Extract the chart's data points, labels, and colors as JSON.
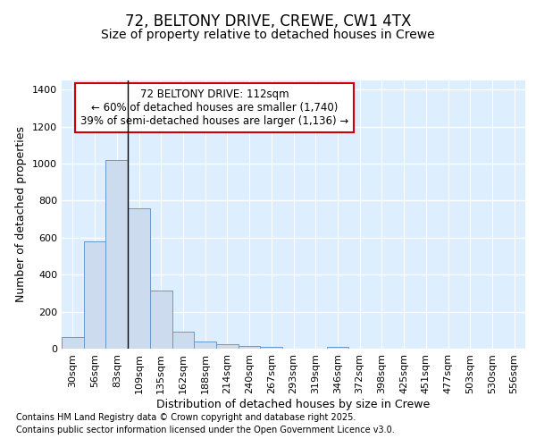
{
  "title1": "72, BELTONY DRIVE, CREWE, CW1 4TX",
  "title2": "Size of property relative to detached houses in Crewe",
  "xlabel": "Distribution of detached houses by size in Crewe",
  "ylabel": "Number of detached properties",
  "bar_labels": [
    "30sqm",
    "56sqm",
    "83sqm",
    "109sqm",
    "135sqm",
    "162sqm",
    "188sqm",
    "214sqm",
    "240sqm",
    "267sqm",
    "293sqm",
    "319sqm",
    "346sqm",
    "372sqm",
    "398sqm",
    "425sqm",
    "451sqm",
    "477sqm",
    "503sqm",
    "530sqm",
    "556sqm"
  ],
  "bar_values": [
    65,
    580,
    1020,
    760,
    315,
    90,
    38,
    25,
    15,
    10,
    0,
    0,
    10,
    0,
    0,
    0,
    0,
    0,
    0,
    0,
    0
  ],
  "bar_color": "#ccdcee",
  "bar_edge_color": "#6699cc",
  "ylim": [
    0,
    1450
  ],
  "yticks": [
    0,
    200,
    400,
    600,
    800,
    1000,
    1200,
    1400
  ],
  "vline_x": 3.0,
  "annotation_text": "72 BELTONY DRIVE: 112sqm\n← 60% of detached houses are smaller (1,740)\n39% of semi-detached houses are larger (1,136) →",
  "annotation_box_facecolor": "#ffffff",
  "annotation_box_edgecolor": "#cc0000",
  "footnote1": "Contains HM Land Registry data © Crown copyright and database right 2025.",
  "footnote2": "Contains public sector information licensed under the Open Government Licence v3.0.",
  "plot_bg_color": "#ddeeff",
  "fig_bg_color": "#ffffff",
  "grid_color": "#ffffff",
  "title1_fontsize": 12,
  "title2_fontsize": 10,
  "xlabel_fontsize": 9,
  "ylabel_fontsize": 9,
  "tick_fontsize": 8,
  "annotation_fontsize": 8.5,
  "footnote_fontsize": 7
}
